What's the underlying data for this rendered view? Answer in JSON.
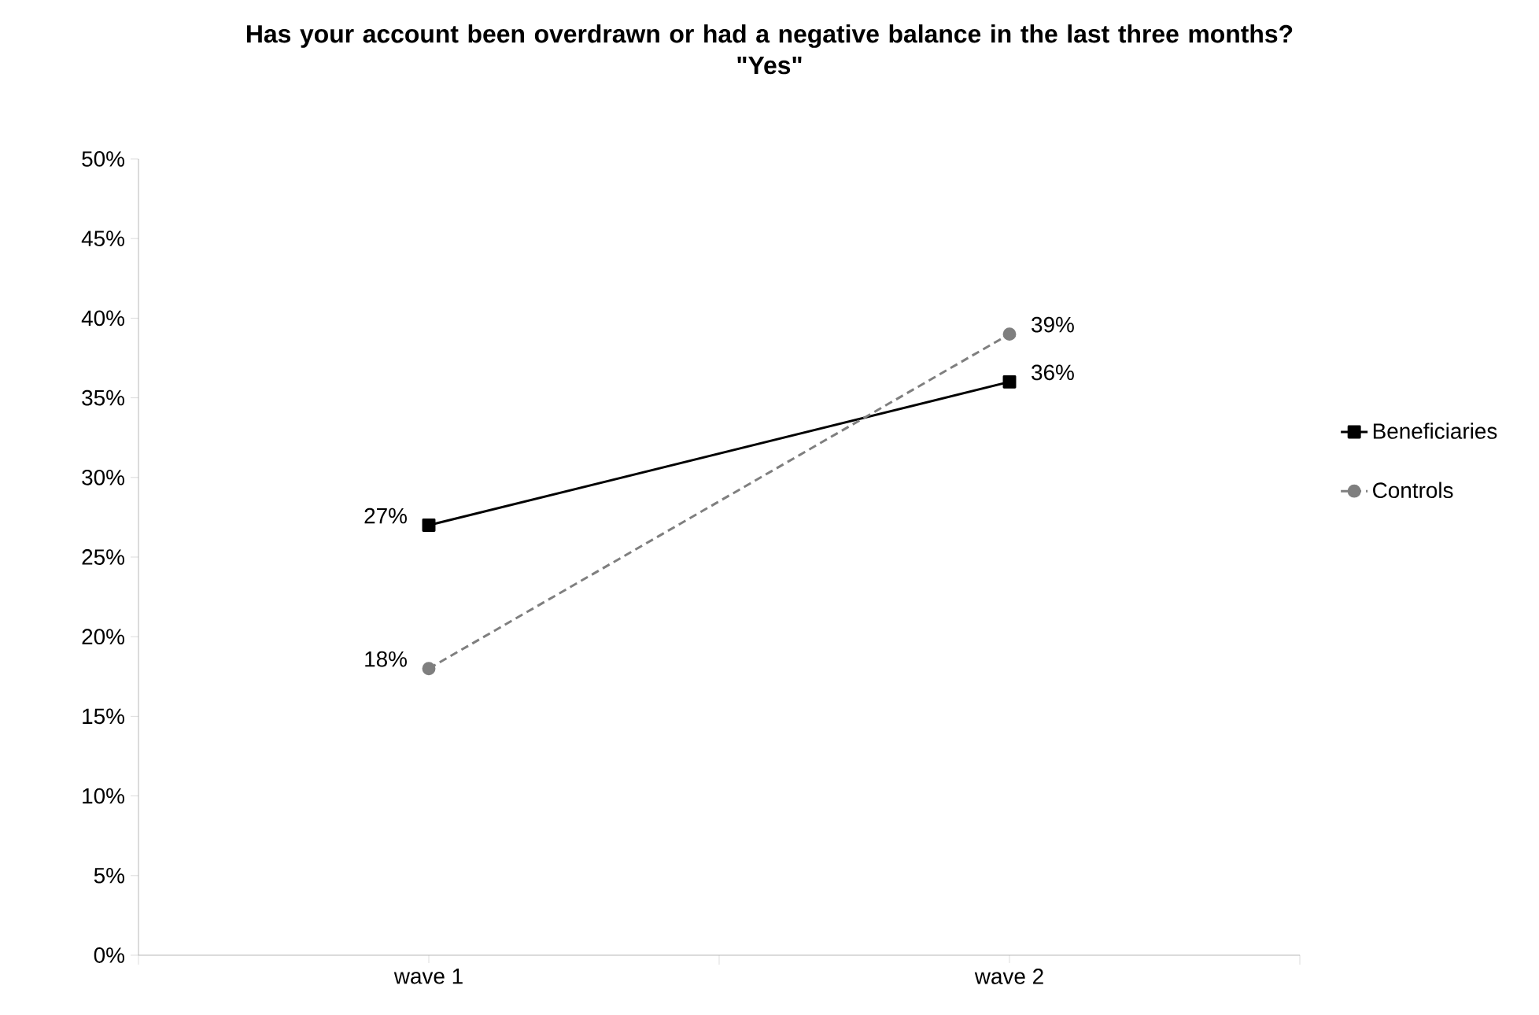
{
  "chart_data": {
    "type": "line",
    "title": "Has your account been overdrawn or had a negative balance in the last three months?",
    "subtitle": "\"Yes\"",
    "categories": [
      "wave 1",
      "wave 2"
    ],
    "series": [
      {
        "name": "Beneficiaries",
        "color": "#000000",
        "values": [
          27,
          36
        ],
        "value_labels": [
          "27%",
          "36%"
        ],
        "marker": "square",
        "line_style": "solid"
      },
      {
        "name": "Controls",
        "color": "#7f7f7f",
        "values": [
          18,
          39
        ],
        "value_labels": [
          "18%",
          "39%"
        ],
        "marker": "circle",
        "line_style": "dashed"
      }
    ],
    "ylim": [
      0,
      50
    ],
    "yticks": [
      {
        "value": 0,
        "label": "0%"
      },
      {
        "value": 5,
        "label": "5%"
      },
      {
        "value": 10,
        "label": "10%"
      },
      {
        "value": 15,
        "label": "15%"
      },
      {
        "value": 20,
        "label": "20%"
      },
      {
        "value": 25,
        "label": "25%"
      },
      {
        "value": 30,
        "label": "30%"
      },
      {
        "value": 35,
        "label": "35%"
      },
      {
        "value": 40,
        "label": "40%"
      },
      {
        "value": 45,
        "label": "45%"
      },
      {
        "value": 50,
        "label": "50%"
      }
    ],
    "grid": false,
    "legend": "right"
  }
}
